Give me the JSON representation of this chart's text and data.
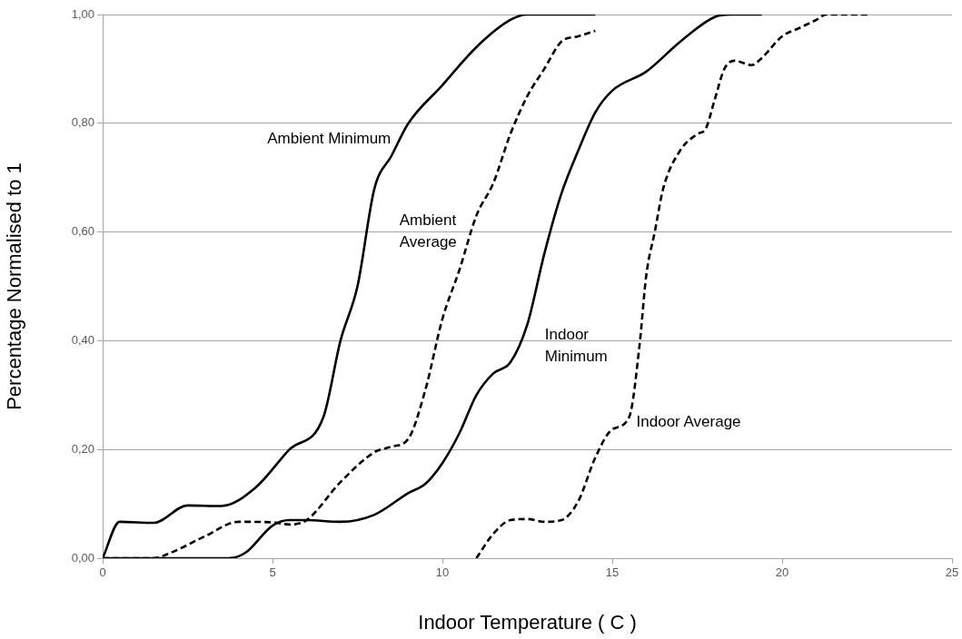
{
  "chart_data": {
    "type": "line",
    "xlabel": "Indoor Temperature ( C )",
    "ylabel": "Percentage Normalised to 1",
    "xlim": [
      0,
      25
    ],
    "xticks": [
      0,
      5,
      10,
      15,
      20,
      25
    ],
    "ylim": [
      0,
      1
    ],
    "yticks": [
      {
        "value": 0,
        "label": "0,00"
      },
      {
        "value": 0.2,
        "label": "0,20"
      },
      {
        "value": 0.4,
        "label": "0,40"
      },
      {
        "value": 0.6,
        "label": "0,60"
      },
      {
        "value": 0.8,
        "label": "0,80"
      },
      {
        "value": 1,
        "label": "1,00"
      }
    ],
    "grid": "y",
    "marker": "none",
    "series": [
      {
        "name": "Ambient Minimum",
        "color": "#000000",
        "line_style": "solid",
        "x": [
          0,
          0.5,
          1.5,
          2.5,
          3.5,
          4.5,
          5.5,
          6.5,
          7,
          7.5,
          8,
          8.5,
          9,
          10,
          11,
          12,
          12.5,
          13,
          14,
          14.5
        ],
        "values": [
          0,
          0.067,
          0.065,
          0.097,
          0.096,
          0.13,
          0.2,
          0.26,
          0.4,
          0.5,
          0.68,
          0.74,
          0.8,
          0.87,
          0.94,
          0.99,
          1,
          1,
          1,
          1
        ]
      },
      {
        "name": "Ambient Average",
        "color": "#000000",
        "line_style": "dashed",
        "x": [
          0,
          1,
          1.5,
          2,
          3,
          4,
          5,
          5.5,
          6,
          7,
          8,
          8.5,
          9,
          9.5,
          10,
          10.5,
          11,
          11.5,
          12,
          12.5,
          13,
          13.5,
          14,
          14.5
        ],
        "values": [
          0,
          0,
          0,
          0.01,
          0.04,
          0.067,
          0.066,
          0.062,
          0.07,
          0.14,
          0.195,
          0.205,
          0.22,
          0.31,
          0.44,
          0.53,
          0.63,
          0.69,
          0.78,
          0.85,
          0.9,
          0.95,
          0.96,
          0.97
        ]
      },
      {
        "name": "Indoor Minimum",
        "color": "#000000",
        "line_style": "solid",
        "x": [
          0,
          1,
          2,
          3,
          3.7,
          4.2,
          5,
          5.5,
          6,
          7,
          8,
          9,
          9.5,
          10,
          10.5,
          11,
          11.5,
          12,
          12.5,
          13,
          13.5,
          14,
          14.5,
          15,
          16,
          17,
          18,
          18.5,
          19.4
        ],
        "values": [
          0,
          0,
          0,
          0,
          0,
          0.01,
          0.06,
          0.07,
          0.07,
          0.067,
          0.08,
          0.12,
          0.137,
          0.175,
          0.23,
          0.3,
          0.34,
          0.36,
          0.43,
          0.56,
          0.67,
          0.75,
          0.82,
          0.86,
          0.895,
          0.95,
          0.995,
          1,
          1
        ]
      },
      {
        "name": "Indoor Average",
        "color": "#000000",
        "line_style": "dashed",
        "x": [
          11,
          11.5,
          12,
          12.5,
          13,
          13.5,
          14,
          14.5,
          15,
          15.5,
          15.8,
          16,
          16.25,
          16.5,
          17,
          17.5,
          17.75,
          18,
          18.3,
          18.6,
          19.1,
          19.4,
          20,
          20.5,
          21,
          21.3,
          22.6
        ],
        "values": [
          0,
          0.045,
          0.07,
          0.072,
          0.067,
          0.07,
          0.105,
          0.185,
          0.237,
          0.26,
          0.39,
          0.52,
          0.6,
          0.68,
          0.75,
          0.78,
          0.79,
          0.84,
          0.9,
          0.915,
          0.907,
          0.92,
          0.96,
          0.975,
          0.99,
          1,
          1
        ]
      }
    ]
  }
}
